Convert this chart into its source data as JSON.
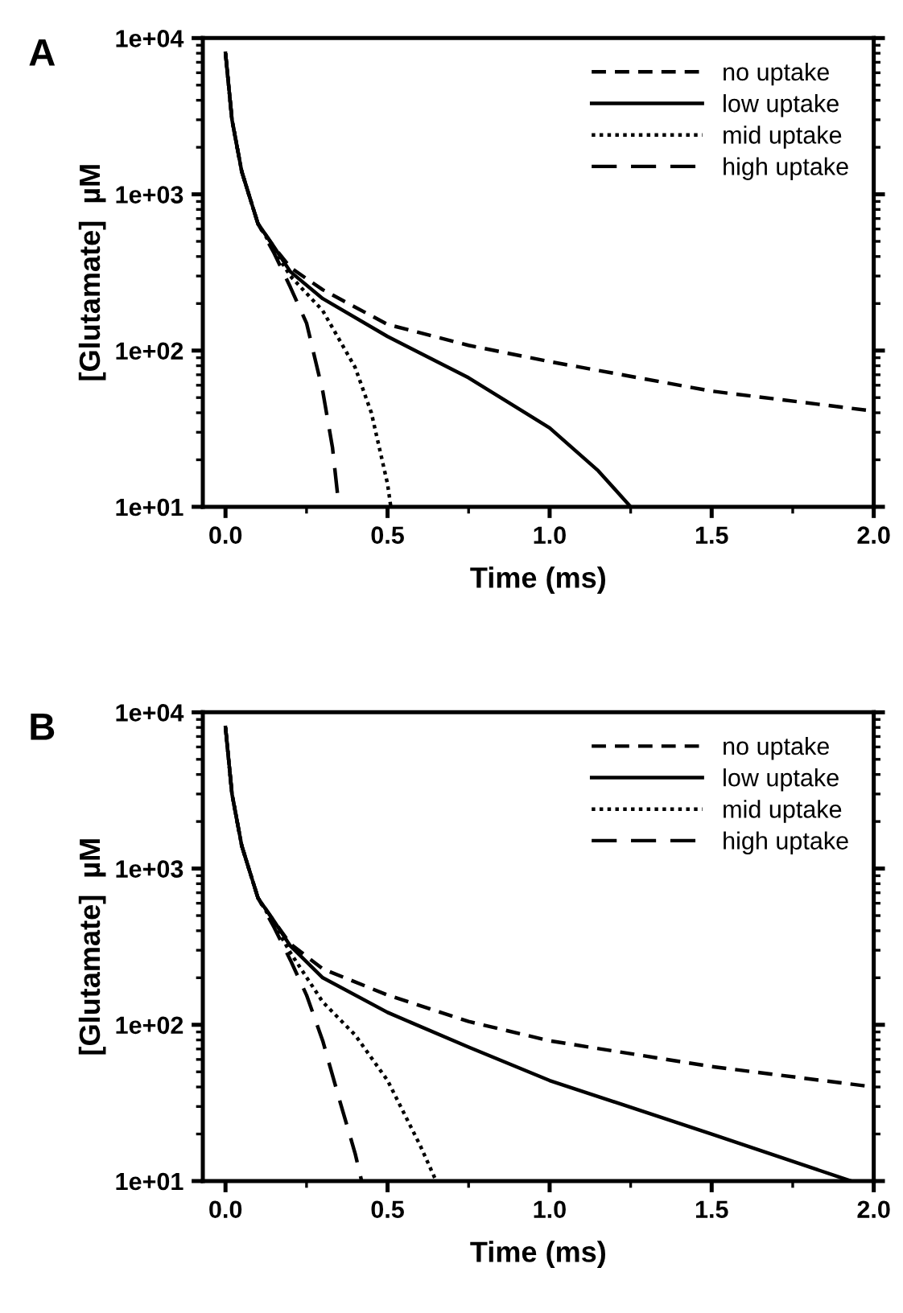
{
  "chart_data": [
    {
      "type": "line",
      "title": "A",
      "xlabel": "Time (ms)",
      "ylabel": "[Glutamate]  µM",
      "log": "y",
      "legend": "top right",
      "grid": false,
      "xlim": [
        -0.07,
        2.0
      ],
      "xticks": [
        {
          "value": 0,
          "label": "0.0"
        },
        {
          "value": 0.5,
          "label": "0.5"
        },
        {
          "value": 1.0,
          "label": "1.0"
        },
        {
          "value": 1.5,
          "label": "1.5"
        },
        {
          "value": 2.0,
          "label": "2.0"
        }
      ],
      "ylim": [
        10,
        10000
      ],
      "yticks": [
        {
          "value": 10,
          "label": "1e+01"
        },
        {
          "value": 100,
          "label": "1e+02"
        },
        {
          "value": 1000,
          "label": "1e+03"
        },
        {
          "value": 10000,
          "label": "1e+04"
        }
      ],
      "series": [
        {
          "name": "no uptake",
          "color": "#000000",
          "line_style": "dashed",
          "x": [
            0,
            0.02,
            0.05,
            0.1,
            0.15,
            0.2,
            0.3,
            0.5,
            0.75,
            1.0,
            1.5,
            2.0
          ],
          "values": [
            8000,
            3000,
            1400,
            650,
            460,
            340,
            245,
            147,
            108,
            85,
            55,
            41
          ]
        },
        {
          "name": "low uptake",
          "color": "#000000",
          "line_style": "solid",
          "x": [
            0,
            0.02,
            0.05,
            0.1,
            0.15,
            0.2,
            0.3,
            0.5,
            0.75,
            1.0,
            1.15,
            1.25
          ],
          "values": [
            8000,
            3000,
            1400,
            650,
            460,
            320,
            215,
            123,
            67,
            32,
            17,
            10
          ]
        },
        {
          "name": "mid uptake",
          "color": "#000000",
          "line_style": "dotted",
          "x": [
            0,
            0.02,
            0.05,
            0.1,
            0.15,
            0.2,
            0.3,
            0.4,
            0.45,
            0.5,
            0.51
          ],
          "values": [
            8000,
            3000,
            1400,
            650,
            440,
            300,
            180,
            78,
            40,
            14,
            10
          ]
        },
        {
          "name": "high uptake",
          "color": "#000000",
          "line_style": "longdash",
          "x": [
            0,
            0.02,
            0.05,
            0.1,
            0.15,
            0.2,
            0.25,
            0.3,
            0.33,
            0.35
          ],
          "values": [
            8000,
            3000,
            1400,
            650,
            420,
            255,
            150,
            55,
            24,
            10
          ]
        }
      ]
    },
    {
      "type": "line",
      "title": "B",
      "xlabel": "Time (ms)",
      "ylabel": "[Glutamate]  µM",
      "log": "y",
      "legend": "top right",
      "grid": false,
      "xlim": [
        -0.07,
        2.0
      ],
      "xticks": [
        {
          "value": 0,
          "label": "0.0"
        },
        {
          "value": 0.5,
          "label": "0.5"
        },
        {
          "value": 1.0,
          "label": "1.0"
        },
        {
          "value": 1.5,
          "label": "1.5"
        },
        {
          "value": 2.0,
          "label": "2.0"
        }
      ],
      "ylim": [
        10,
        10000
      ],
      "yticks": [
        {
          "value": 10,
          "label": "1e+01"
        },
        {
          "value": 100,
          "label": "1e+02"
        },
        {
          "value": 1000,
          "label": "1e+03"
        },
        {
          "value": 10000,
          "label": "1e+04"
        }
      ],
      "series": [
        {
          "name": "no uptake",
          "color": "#000000",
          "line_style": "dashed",
          "x": [
            0,
            0.02,
            0.05,
            0.1,
            0.15,
            0.2,
            0.3,
            0.5,
            0.75,
            1.0,
            1.5,
            2.0
          ],
          "values": [
            8000,
            3000,
            1400,
            650,
            460,
            330,
            228,
            155,
            105,
            79,
            54,
            40
          ]
        },
        {
          "name": "low uptake",
          "color": "#000000",
          "line_style": "solid",
          "x": [
            0,
            0.02,
            0.05,
            0.1,
            0.15,
            0.2,
            0.3,
            0.5,
            0.75,
            1.0,
            1.5,
            1.93
          ],
          "values": [
            8000,
            3000,
            1400,
            650,
            460,
            320,
            200,
            120,
            72,
            44,
            20,
            10
          ]
        },
        {
          "name": "mid uptake",
          "color": "#000000",
          "line_style": "dotted",
          "x": [
            0,
            0.02,
            0.05,
            0.1,
            0.15,
            0.2,
            0.3,
            0.4,
            0.5,
            0.6,
            0.65
          ],
          "values": [
            8000,
            3000,
            1400,
            650,
            440,
            290,
            140,
            86,
            44,
            17,
            10
          ]
        },
        {
          "name": "high uptake",
          "color": "#000000",
          "line_style": "longdash",
          "x": [
            0,
            0.02,
            0.05,
            0.1,
            0.15,
            0.2,
            0.25,
            0.3,
            0.35,
            0.4,
            0.42
          ],
          "values": [
            8000,
            3000,
            1400,
            650,
            420,
            260,
            155,
            79,
            34,
            15,
            10
          ]
        }
      ]
    }
  ]
}
